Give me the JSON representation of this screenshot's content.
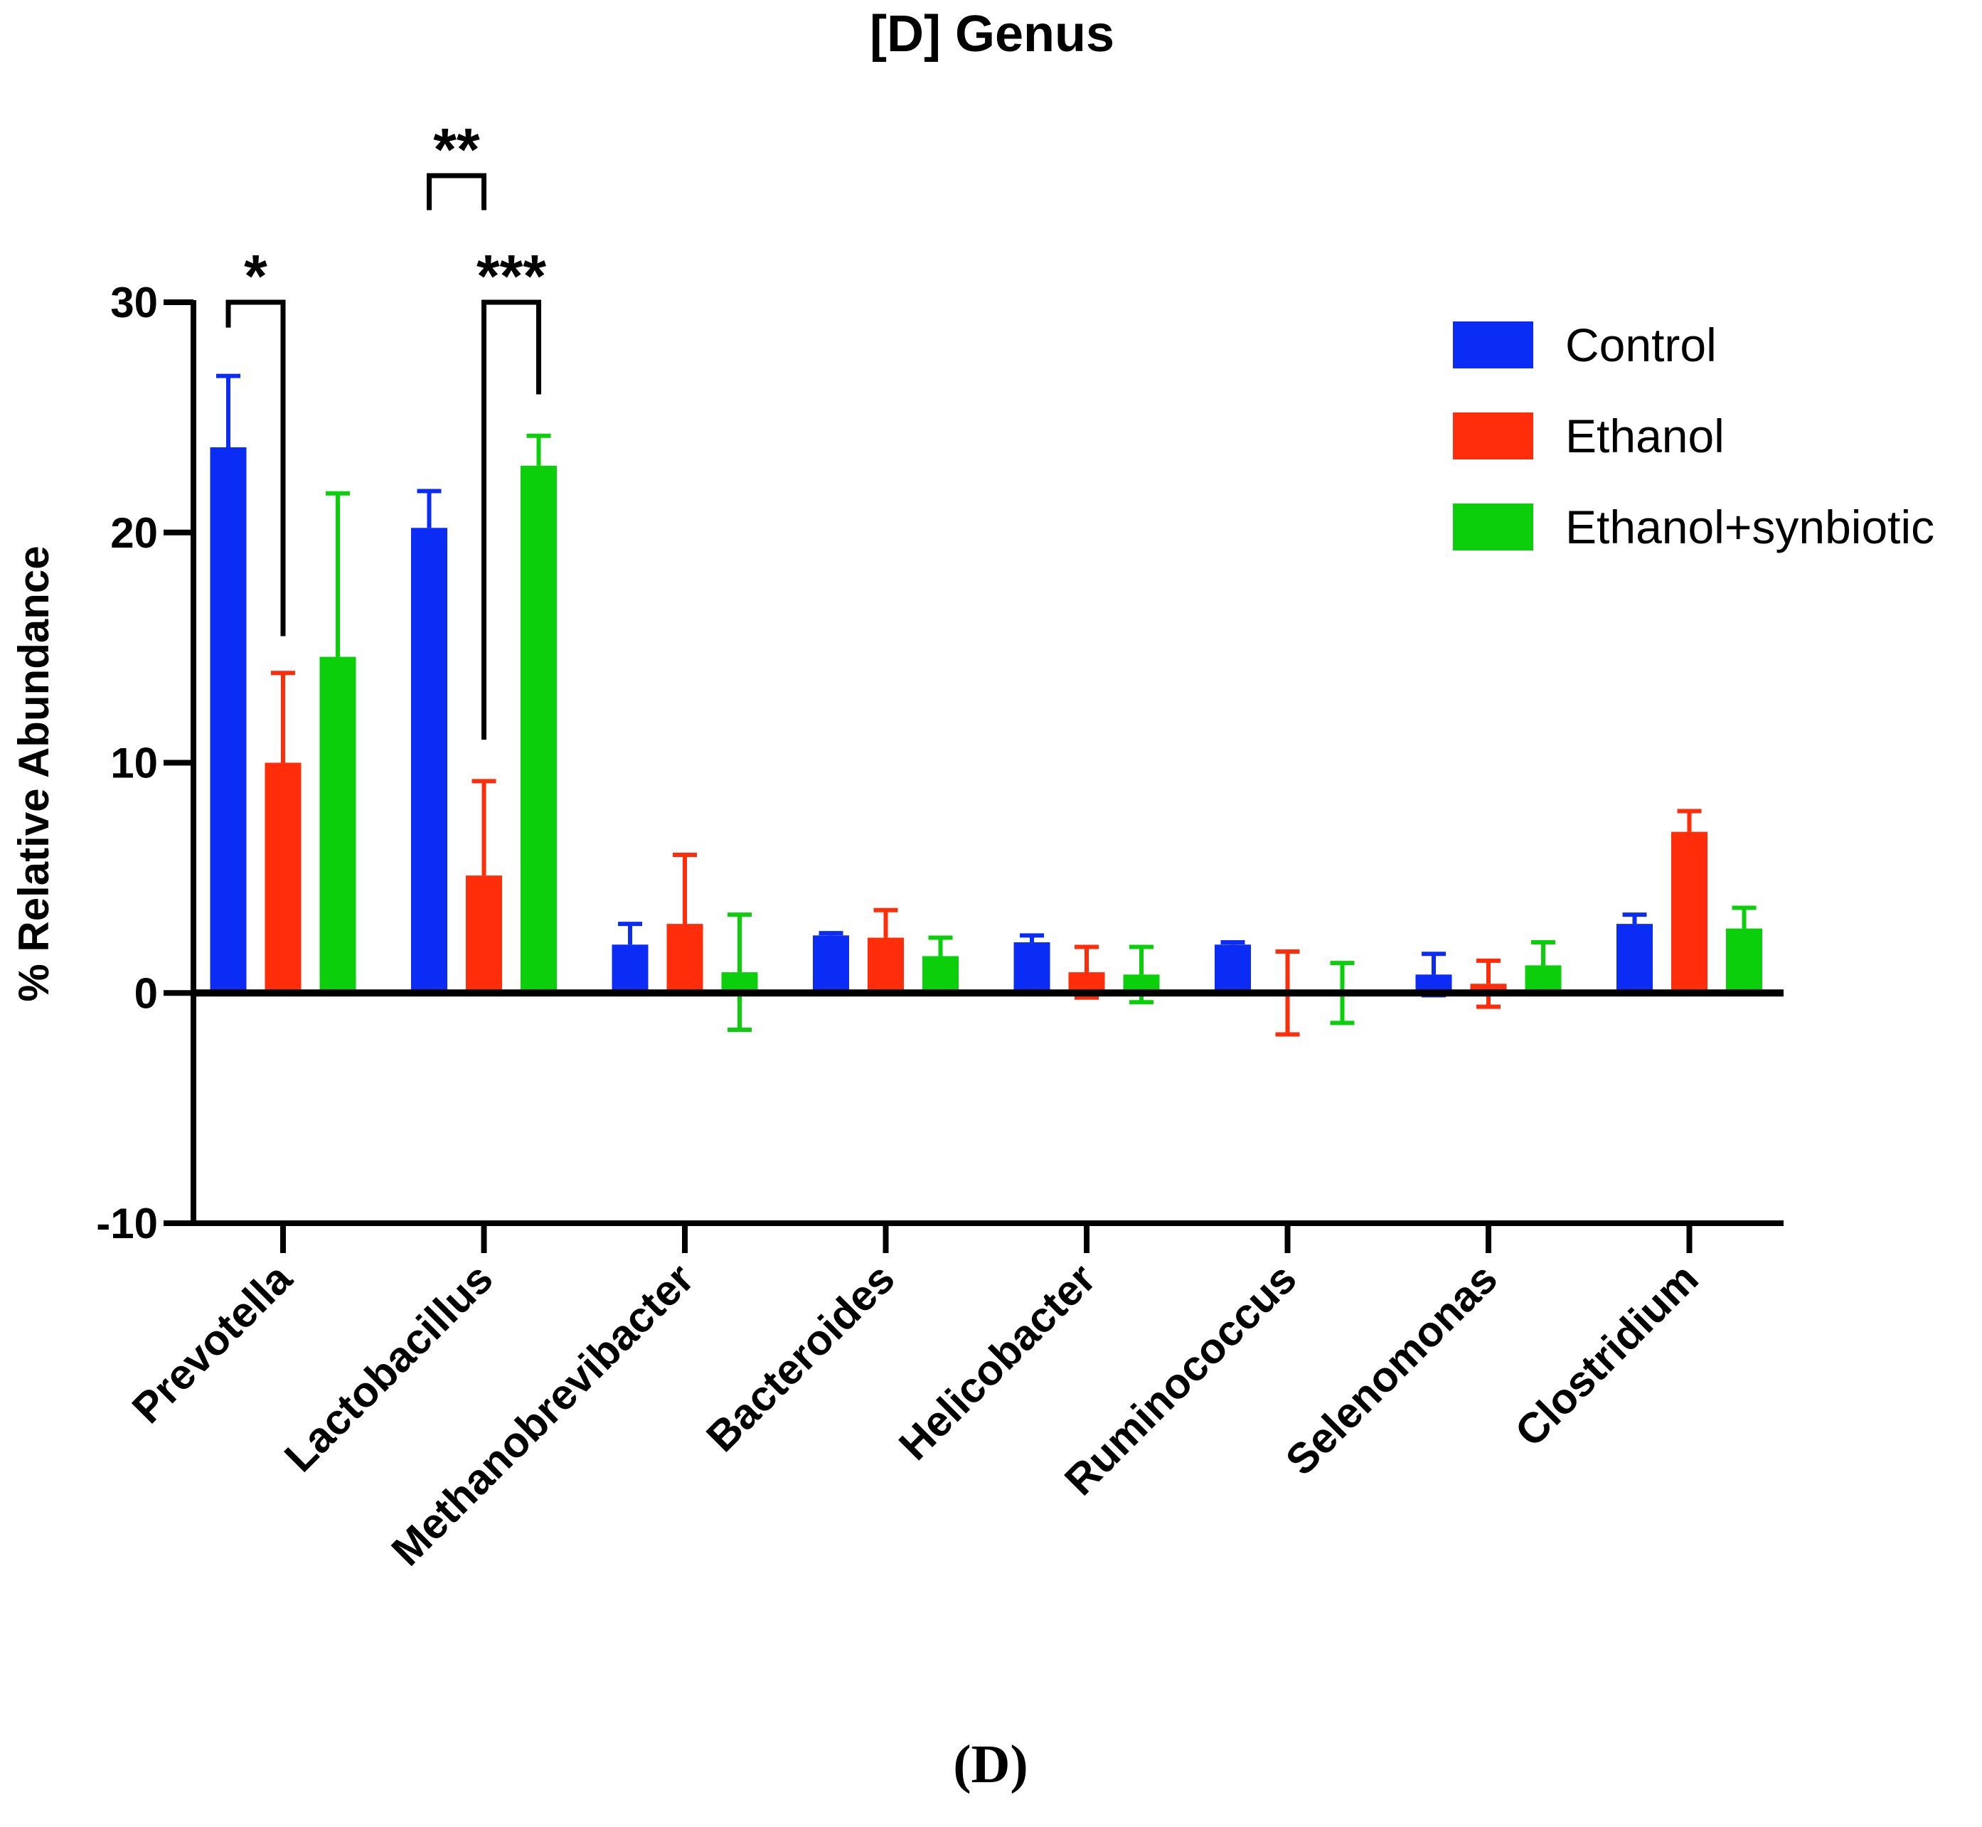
{
  "panel_label": "(D)",
  "chart_data": {
    "type": "bar",
    "title": "[D] Genus",
    "xlabel": "",
    "ylabel": "% Relative Abundance",
    "ylim": [
      -10,
      30
    ],
    "yticks": [
      30,
      20,
      10,
      0,
      -10
    ],
    "ytick_labels": [
      "30",
      "20",
      "10",
      "0",
      "-10"
    ],
    "legend_position": "top-right",
    "categories": [
      "Prevotella",
      "Lactobacillus",
      "Methanobrevibacter",
      "Bacteroides",
      "Helicobacter",
      "Ruminococcus",
      "Selenomonas",
      "Clostridium"
    ],
    "series": [
      {
        "name": "Control",
        "color": "#0a2cf5",
        "values": [
          23.7,
          20.2,
          2.1,
          2.5,
          2.2,
          2.1,
          0.8,
          3.0
        ],
        "errors": [
          3.1,
          1.6,
          0.9,
          0.1,
          0.3,
          0.1,
          0.9,
          0.4
        ]
      },
      {
        "name": "Ethanol",
        "color": "#ff2d0a",
        "values": [
          10.0,
          5.1,
          3.0,
          2.4,
          0.9,
          0.0,
          0.4,
          7.0
        ],
        "errors": [
          3.9,
          4.1,
          3.0,
          1.2,
          1.1,
          1.8,
          1.0,
          0.9
        ]
      },
      {
        "name": "Ethanol+synbiotic",
        "color": "#0ccf0c",
        "values": [
          14.6,
          22.9,
          0.9,
          1.6,
          0.8,
          0.0,
          1.2,
          2.8
        ],
        "errors": [
          7.1,
          1.3,
          2.5,
          0.8,
          1.2,
          1.3,
          1.0,
          0.9
        ]
      }
    ],
    "significance": [
      {
        "label": "*",
        "category": "Prevotella",
        "from_series": "Control",
        "to_series": "Ethanol",
        "bracket_top": 30,
        "from_drop": 28.9,
        "to_drop": 15.5
      },
      {
        "label": "**",
        "category": "Lactobacillus",
        "from_series": "Control",
        "to_series": "Ethanol",
        "bracket_top": 35.5,
        "from_drop": 34,
        "to_drop": 34
      },
      {
        "label": "***",
        "category": "Lactobacillus",
        "from_series": "Ethanol",
        "to_series": "Ethanol+synbiotic",
        "bracket_top": 30,
        "from_drop": 11,
        "to_drop": 26
      }
    ]
  }
}
